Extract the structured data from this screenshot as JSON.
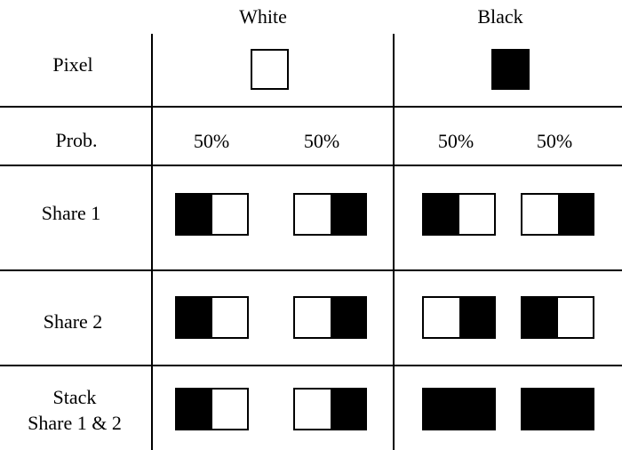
{
  "header": {
    "white_label": "White",
    "black_label": "Black"
  },
  "rows": {
    "pixel_label": "Pixel",
    "prob_label": "Prob.",
    "share1_label": "Share 1",
    "share2_label": "Share 2",
    "stack_label_line1": "Stack",
    "stack_label_line2": "Share 1 & 2"
  },
  "probabilities": {
    "white_a": "50%",
    "white_b": "50%",
    "black_a": "50%",
    "black_b": "50%"
  },
  "patterns": {
    "pixel_white": "white",
    "pixel_black": "black",
    "share1": [
      [
        "black",
        "white"
      ],
      [
        "white",
        "black"
      ],
      [
        "black",
        "white"
      ],
      [
        "white",
        "black"
      ]
    ],
    "share2": [
      [
        "black",
        "white"
      ],
      [
        "white",
        "black"
      ],
      [
        "white",
        "black"
      ],
      [
        "black",
        "white"
      ]
    ],
    "stack": [
      [
        "black",
        "white"
      ],
      [
        "white",
        "black"
      ],
      [
        "black",
        "black"
      ],
      [
        "black",
        "black"
      ]
    ]
  },
  "colors": {
    "black": "#000000",
    "white": "#ffffff"
  }
}
